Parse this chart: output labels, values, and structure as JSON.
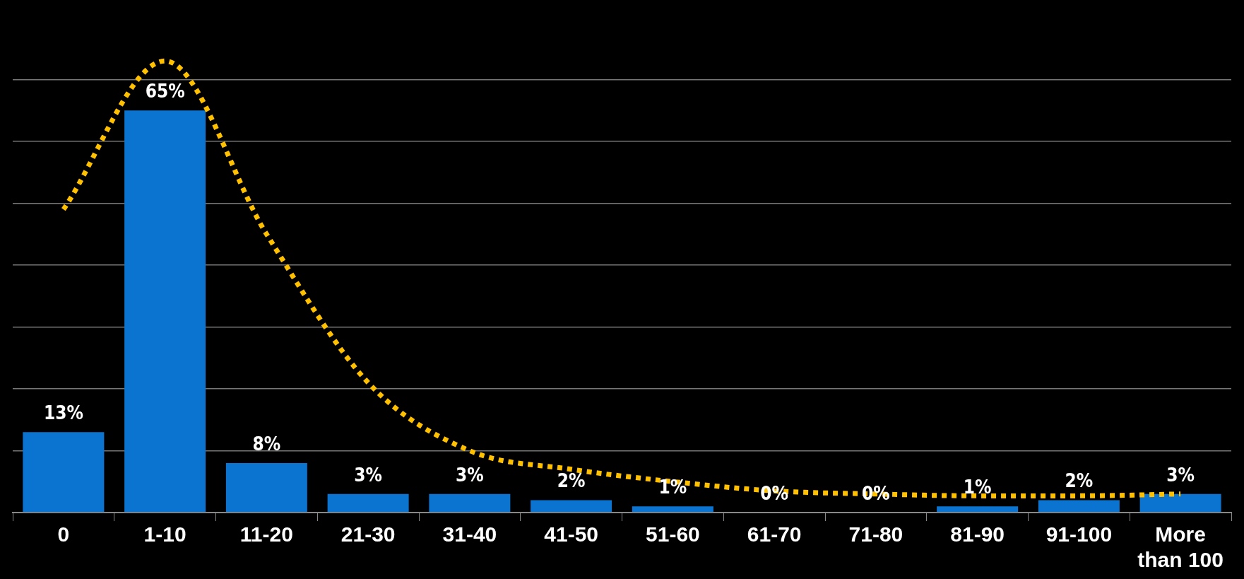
{
  "chart_data": {
    "type": "bar",
    "categories": [
      "0",
      "1-10",
      "11-20",
      "21-30",
      "31-40",
      "41-50",
      "51-60",
      "61-70",
      "71-80",
      "81-90",
      "91-100",
      "More than 100"
    ],
    "series": [
      {
        "color": "#0a74d0",
        "values": [
          13,
          65,
          8,
          3,
          3,
          2,
          1,
          0,
          0,
          1,
          2,
          3
        ],
        "value_labels": [
          "13%",
          "65%",
          "8%",
          "3%",
          "3%",
          "2%",
          "1%",
          "0%",
          "0%",
          "1%",
          "2%",
          "3%"
        ]
      },
      {
        "type": "line",
        "color": "#ffc000",
        "line_style": "dotted",
        "marker": "none",
        "values": [
          49,
          73,
          45,
          21,
          10,
          7,
          5,
          3.5,
          3,
          2.7,
          2.7,
          3
        ]
      }
    ],
    "yticks": [
      {
        "value": 0,
        "label": null
      },
      {
        "value": 10,
        "label": null
      },
      {
        "value": 20,
        "label": null
      },
      {
        "value": 30,
        "label": null
      },
      {
        "value": 40,
        "label": null
      },
      {
        "value": 50,
        "label": null
      },
      {
        "value": 60,
        "label": null
      },
      {
        "value": 70,
        "label": null
      }
    ],
    "grid": "y",
    "legend": false,
    "tick_labels": "x"
  }
}
